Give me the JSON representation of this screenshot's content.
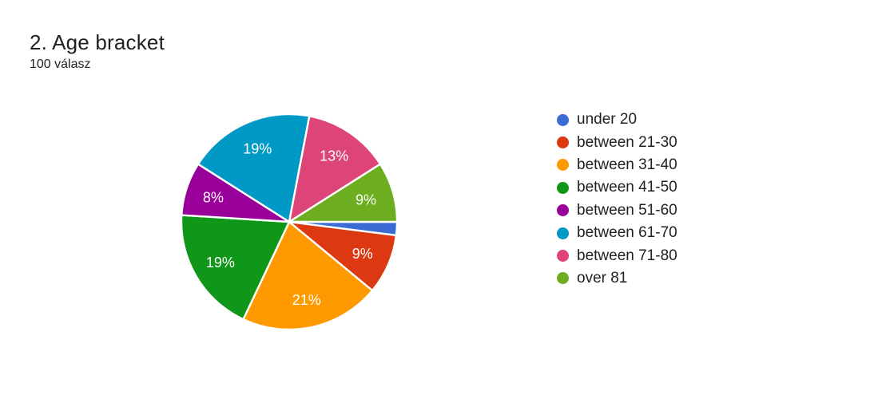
{
  "header": {
    "title": "2. Age bracket",
    "subtitle": "100 válasz"
  },
  "chart_data": {
    "type": "pie",
    "title": "2. Age bracket",
    "subtitle": "100 válasz",
    "total_responses": 100,
    "unit": "percent",
    "start_angle_deg": 90,
    "direction": "clockwise",
    "legend_position": "right",
    "slice_label_color": "#ffffff",
    "slice_border_color": "#ffffff",
    "background_color": "#ffffff",
    "slices": [
      {
        "label": "under 20",
        "value": 2,
        "displayed_label": "",
        "color": "#3B6CD6"
      },
      {
        "label": "between 21-30",
        "value": 9,
        "displayed_label": "9%",
        "color": "#DC3912"
      },
      {
        "label": "between 31-40",
        "value": 21,
        "displayed_label": "21%",
        "color": "#FF9900"
      },
      {
        "label": "between 41-50",
        "value": 19,
        "displayed_label": "19%",
        "color": "#109618"
      },
      {
        "label": "between 51-60",
        "value": 8,
        "displayed_label": "8%",
        "color": "#990099"
      },
      {
        "label": "between 61-70",
        "value": 19,
        "displayed_label": "19%",
        "color": "#0099C6"
      },
      {
        "label": "between 71-80",
        "value": 13,
        "displayed_label": "13%",
        "color": "#DD4477"
      },
      {
        "label": "over 81",
        "value": 9,
        "displayed_label": "9%",
        "color": "#6CAE20"
      }
    ]
  }
}
